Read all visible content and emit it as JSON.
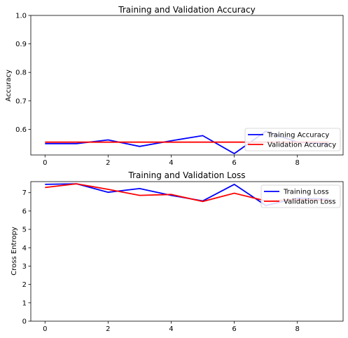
{
  "chart_data": [
    {
      "type": "line",
      "title": "Training and Validation Accuracy",
      "xlabel": "",
      "ylabel": "Accuracy",
      "x": [
        0,
        1,
        2,
        3,
        4,
        5,
        6,
        7,
        8,
        9
      ],
      "xticks": [
        "0",
        "2",
        "4",
        "6",
        "8"
      ],
      "xtick_values": [
        0,
        2,
        4,
        6,
        8
      ],
      "yticks": [
        "0.6",
        "0.7",
        "0.8",
        "0.9",
        "1.0"
      ],
      "ytick_values": [
        0.6,
        0.7,
        0.8,
        0.9,
        1.0
      ],
      "xlim": [
        -0.45,
        9.45
      ],
      "ylim": [
        0.51,
        1.0
      ],
      "legend_position": "lower right",
      "series": [
        {
          "name": "Training Accuracy",
          "color": "#0000ff",
          "values": [
            0.55,
            0.55,
            0.563,
            0.54,
            0.56,
            0.578,
            0.515,
            0.593,
            0.555,
            0.548
          ]
        },
        {
          "name": "Validation Accuracy",
          "color": "#ff0000",
          "values": [
            0.555,
            0.555,
            0.555,
            0.555,
            0.555,
            0.555,
            0.555,
            0.555,
            0.555,
            0.555
          ]
        }
      ]
    },
    {
      "type": "line",
      "title": "Training and Validation Loss",
      "xlabel": "",
      "ylabel": "Cross Entropy",
      "x": [
        0,
        1,
        2,
        3,
        4,
        5,
        6,
        7,
        8,
        9
      ],
      "xticks": [
        "0",
        "2",
        "4",
        "6",
        "8"
      ],
      "xtick_values": [
        0,
        2,
        4,
        6,
        8
      ],
      "yticks": [
        "0",
        "1",
        "2",
        "3",
        "4",
        "5",
        "6",
        "7"
      ],
      "ytick_values": [
        0,
        1,
        2,
        3,
        4,
        5,
        6,
        7
      ],
      "xlim": [
        -0.45,
        9.45
      ],
      "ylim": [
        0,
        7.6
      ],
      "legend_position": "upper right",
      "series": [
        {
          "name": "Training Loss",
          "color": "#0000ff",
          "values": [
            7.45,
            7.48,
            7.02,
            7.22,
            6.85,
            6.55,
            7.45,
            6.3,
            6.7,
            6.65
          ]
        },
        {
          "name": "Validation Loss",
          "color": "#ff0000",
          "values": [
            7.28,
            7.48,
            7.18,
            6.85,
            6.9,
            6.52,
            6.97,
            6.55,
            6.62,
            6.58
          ]
        }
      ]
    }
  ]
}
